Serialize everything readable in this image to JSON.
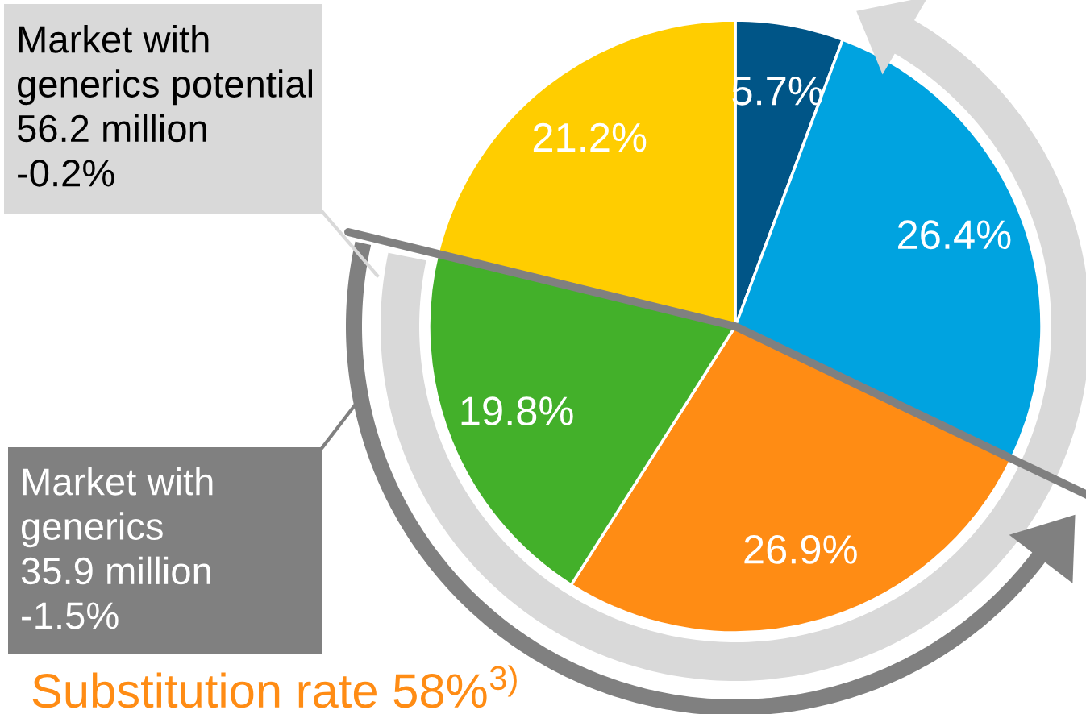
{
  "chart_data": {
    "type": "pie",
    "categories": [
      null,
      null,
      null,
      null,
      null
    ],
    "values": [
      5.7,
      26.4,
      26.9,
      19.8,
      21.2
    ],
    "colors": [
      "#005587",
      "#00a3e0",
      "#ff8c14",
      "#43b02a",
      "#ffcd00"
    ],
    "value_labels": [
      "5.7%",
      "26.4%",
      "26.9%",
      "19.8%",
      "21.2%"
    ],
    "annotations": [
      "Market with\ngenerics potential\n56.2 million\n-0.2%",
      "Market with\ngenerics\n35.9 million\n-1.5%",
      "Substitution rate 58%$^{3)}$"
    ]
  }
}
